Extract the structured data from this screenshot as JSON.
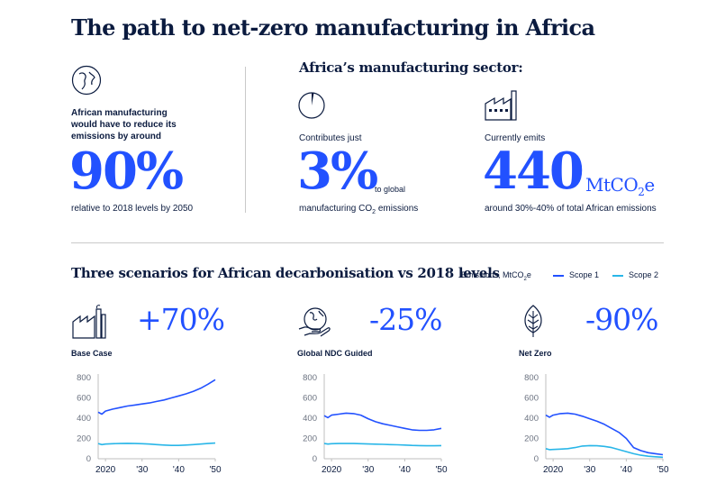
{
  "title": "The path to net-zero manufacturing in Africa",
  "left_stat": {
    "icon": "globe-icon",
    "label_lines": [
      "African manufacturing",
      "would have to reduce its",
      "emissions by around"
    ],
    "value": "90%",
    "caption": "relative to 2018 levels by 2050"
  },
  "sector": {
    "heading": "Africa’s manufacturing sector:",
    "share": {
      "icon": "pie-slice-icon",
      "label": "Contributes just",
      "value": "3%",
      "suffix": "to global",
      "caption_pre": "manufacturing CO",
      "caption_sub": "2",
      "caption_post": " emissions"
    },
    "emissions": {
      "icon": "factory-icon",
      "label": "Currently emits",
      "value": "440",
      "unit_pre": "MtCO",
      "unit_sub": "2",
      "unit_post": "e",
      "caption": "around 30%-40% of total African emissions"
    }
  },
  "scenarios": {
    "heading": "Three scenarios for African decarbonisation vs 2018 levels",
    "legend": {
      "title_pre": "Emissions, MtCO",
      "title_sub": "2",
      "title_post": "e",
      "scope1": "Scope 1",
      "scope2": "Scope 2"
    },
    "panels": [
      {
        "name": "Base Case",
        "change": "+70%",
        "icon": "factory-icon"
      },
      {
        "name": "Global NDC Guided",
        "change": "-25%",
        "icon": "globe-hand-icon"
      },
      {
        "name": "Net Zero",
        "change": "-90%",
        "icon": "leaf-icon"
      }
    ]
  },
  "colors": {
    "scope1": "#2251ff",
    "scope2": "#29b6e8",
    "axis": "#bfbfbf",
    "text": "#0b1b3f"
  },
  "chart_data": [
    {
      "type": "line",
      "title": "Base Case",
      "x": [
        2018,
        2019,
        2020,
        2022,
        2024,
        2026,
        2028,
        2030,
        2032,
        2034,
        2036,
        2038,
        2040,
        2042,
        2044,
        2046,
        2048,
        2050
      ],
      "series": [
        {
          "name": "Scope 1",
          "values": [
            460,
            440,
            470,
            490,
            505,
            520,
            530,
            540,
            550,
            565,
            580,
            600,
            620,
            640,
            665,
            695,
            735,
            780
          ]
        },
        {
          "name": "Scope 2",
          "values": [
            150,
            140,
            145,
            148,
            150,
            152,
            150,
            148,
            145,
            140,
            135,
            132,
            132,
            135,
            140,
            145,
            150,
            155
          ]
        }
      ],
      "ylim": [
        0,
        800
      ],
      "yticks": [
        0,
        200,
        400,
        600,
        800
      ],
      "xticks": [
        "2020",
        "'30",
        "'40",
        "'50"
      ]
    },
    {
      "type": "line",
      "title": "Global NDC Guided",
      "x": [
        2018,
        2019,
        2020,
        2022,
        2024,
        2026,
        2028,
        2030,
        2032,
        2034,
        2036,
        2038,
        2040,
        2042,
        2044,
        2046,
        2048,
        2050
      ],
      "series": [
        {
          "name": "Scope 1",
          "values": [
            425,
            405,
            430,
            440,
            450,
            445,
            430,
            395,
            365,
            345,
            330,
            315,
            300,
            285,
            280,
            280,
            285,
            300
          ]
        },
        {
          "name": "Scope 2",
          "values": [
            150,
            145,
            148,
            150,
            150,
            150,
            148,
            146,
            144,
            142,
            140,
            138,
            135,
            132,
            130,
            128,
            128,
            130
          ]
        }
      ],
      "ylim": [
        0,
        800
      ],
      "yticks": [
        0,
        200,
        400,
        600,
        800
      ],
      "xticks": [
        "2020",
        "'30",
        "'40",
        "'50"
      ]
    },
    {
      "type": "line",
      "title": "Net Zero",
      "x": [
        2018,
        2019,
        2020,
        2022,
        2024,
        2026,
        2028,
        2030,
        2032,
        2034,
        2036,
        2038,
        2040,
        2042,
        2044,
        2046,
        2048,
        2050
      ],
      "series": [
        {
          "name": "Scope 1",
          "values": [
            430,
            410,
            430,
            445,
            450,
            440,
            420,
            395,
            370,
            340,
            300,
            260,
            200,
            110,
            80,
            60,
            50,
            40
          ]
        },
        {
          "name": "Scope 2",
          "values": [
            100,
            90,
            92,
            95,
            100,
            110,
            125,
            130,
            128,
            122,
            110,
            90,
            70,
            50,
            35,
            25,
            20,
            15
          ]
        }
      ],
      "ylim": [
        0,
        800
      ],
      "yticks": [
        0,
        200,
        400,
        600,
        800
      ],
      "xticks": [
        "2020",
        "'30",
        "'40",
        "'50"
      ]
    }
  ]
}
